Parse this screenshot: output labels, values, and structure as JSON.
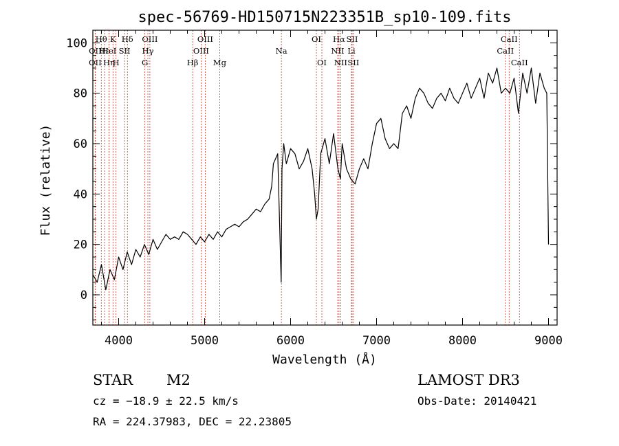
{
  "chart_data": {
    "type": "line",
    "title": "spec-56769-HD150715N223351B_sp10-109.fits",
    "xlabel": "Wavelength (Å)",
    "ylabel": "Flux (relative)",
    "xlim": [
      3700,
      9100
    ],
    "ylim": [
      -12,
      105
    ],
    "xticks": [
      4000,
      5000,
      6000,
      7000,
      8000,
      9000
    ],
    "yticks": [
      0,
      20,
      40,
      60,
      80,
      100
    ],
    "grid": false,
    "series": [
      {
        "name": "spectrum",
        "x": [
          3700,
          3750,
          3800,
          3850,
          3900,
          3950,
          4000,
          4050,
          4100,
          4150,
          4200,
          4250,
          4300,
          4350,
          4400,
          4450,
          4500,
          4550,
          4600,
          4650,
          4700,
          4750,
          4800,
          4850,
          4900,
          4950,
          5000,
          5050,
          5100,
          5150,
          5200,
          5250,
          5300,
          5350,
          5400,
          5450,
          5500,
          5550,
          5600,
          5650,
          5700,
          5750,
          5780,
          5800,
          5850,
          5890,
          5900,
          5920,
          5950,
          6000,
          6050,
          6100,
          6150,
          6200,
          6250,
          6280,
          6300,
          6320,
          6350,
          6400,
          6450,
          6500,
          6550,
          6580,
          6600,
          6620,
          6650,
          6700,
          6750,
          6800,
          6850,
          6900,
          6950,
          7000,
          7050,
          7100,
          7150,
          7200,
          7250,
          7300,
          7350,
          7400,
          7450,
          7500,
          7550,
          7600,
          7650,
          7700,
          7750,
          7800,
          7850,
          7900,
          7950,
          8000,
          8050,
          8100,
          8150,
          8200,
          8250,
          8300,
          8350,
          8400,
          8450,
          8500,
          8550,
          8600,
          8650,
          8700,
          8750,
          8800,
          8850,
          8900,
          8950,
          8980,
          9000
        ],
        "y": [
          8,
          5,
          12,
          2,
          10,
          6,
          15,
          10,
          17,
          12,
          18,
          15,
          20,
          16,
          22,
          18,
          21,
          24,
          22,
          23,
          22,
          25,
          24,
          22,
          20,
          23,
          21,
          24,
          22,
          25,
          23,
          26,
          27,
          28,
          27,
          29,
          30,
          32,
          34,
          33,
          36,
          38,
          43,
          52,
          56,
          5,
          50,
          60,
          52,
          58,
          56,
          50,
          53,
          58,
          50,
          40,
          30,
          34,
          56,
          62,
          52,
          64,
          50,
          46,
          60,
          56,
          50,
          46,
          44,
          50,
          54,
          50,
          60,
          68,
          70,
          62,
          58,
          60,
          58,
          72,
          75,
          70,
          78,
          82,
          80,
          76,
          74,
          78,
          80,
          77,
          82,
          78,
          76,
          80,
          84,
          78,
          82,
          86,
          78,
          88,
          84,
          90,
          80,
          82,
          80,
          86,
          72,
          88,
          80,
          90,
          76,
          88,
          82,
          80,
          20
        ]
      }
    ],
    "line_markers": [
      {
        "label": "Hθ",
        "x": 3798,
        "row": 0
      },
      {
        "label": "Hε",
        "x": 3835,
        "row": 1
      },
      {
        "label": "OII",
        "x": 3727,
        "row": 1
      },
      {
        "label": "OII",
        "x": 3727,
        "row": 2
      },
      {
        "label": "Hη",
        "x": 3889,
        "row": 2
      },
      {
        "label": "K",
        "x": 3934,
        "row": 0
      },
      {
        "label": "HeI",
        "x": 3889,
        "row": 1
      },
      {
        "label": "H",
        "x": 3969,
        "row": 2
      },
      {
        "label": "SII",
        "x": 4069,
        "row": 1
      },
      {
        "label": "Hδ",
        "x": 4102,
        "row": 0
      },
      {
        "label": "OIII",
        "x": 4363,
        "row": 0
      },
      {
        "label": "Hγ",
        "x": 4340,
        "row": 1
      },
      {
        "label": "G",
        "x": 4305,
        "row": 2
      },
      {
        "label": "Hβ",
        "x": 4861,
        "row": 2
      },
      {
        "label": "OIII",
        "x": 4959,
        "row": 1
      },
      {
        "label": "OIII",
        "x": 5007,
        "row": 0
      },
      {
        "label": "Mg",
        "x": 5175,
        "row": 2
      },
      {
        "label": "Na",
        "x": 5893,
        "row": 1
      },
      {
        "label": "OI",
        "x": 6300,
        "row": 0
      },
      {
        "label": "OI",
        "x": 6364,
        "row": 2
      },
      {
        "label": "Hα",
        "x": 6563,
        "row": 0
      },
      {
        "label": "NII",
        "x": 6548,
        "row": 1
      },
      {
        "label": "NII",
        "x": 6583,
        "row": 2
      },
      {
        "label": "SII",
        "x": 6716,
        "row": 0
      },
      {
        "label": "Li",
        "x": 6708,
        "row": 1
      },
      {
        "label": "SII",
        "x": 6731,
        "row": 2
      },
      {
        "label": "CaII",
        "x": 8542,
        "row": 0
      },
      {
        "label": "CaII",
        "x": 8498,
        "row": 1
      },
      {
        "label": "CaII",
        "x": 8662,
        "row": 2
      }
    ]
  },
  "info": {
    "object_class": "STAR",
    "subclass": "M2",
    "survey": "LAMOST DR3",
    "redshift": "cz = −18.9 ± 22.5 km/s",
    "obs_date": "Obs-Date: 20140421",
    "coords": "RA = 224.37983, DEC =  22.23805"
  },
  "colors": {
    "marker": "#c0392b",
    "spectrum": "#000000"
  }
}
